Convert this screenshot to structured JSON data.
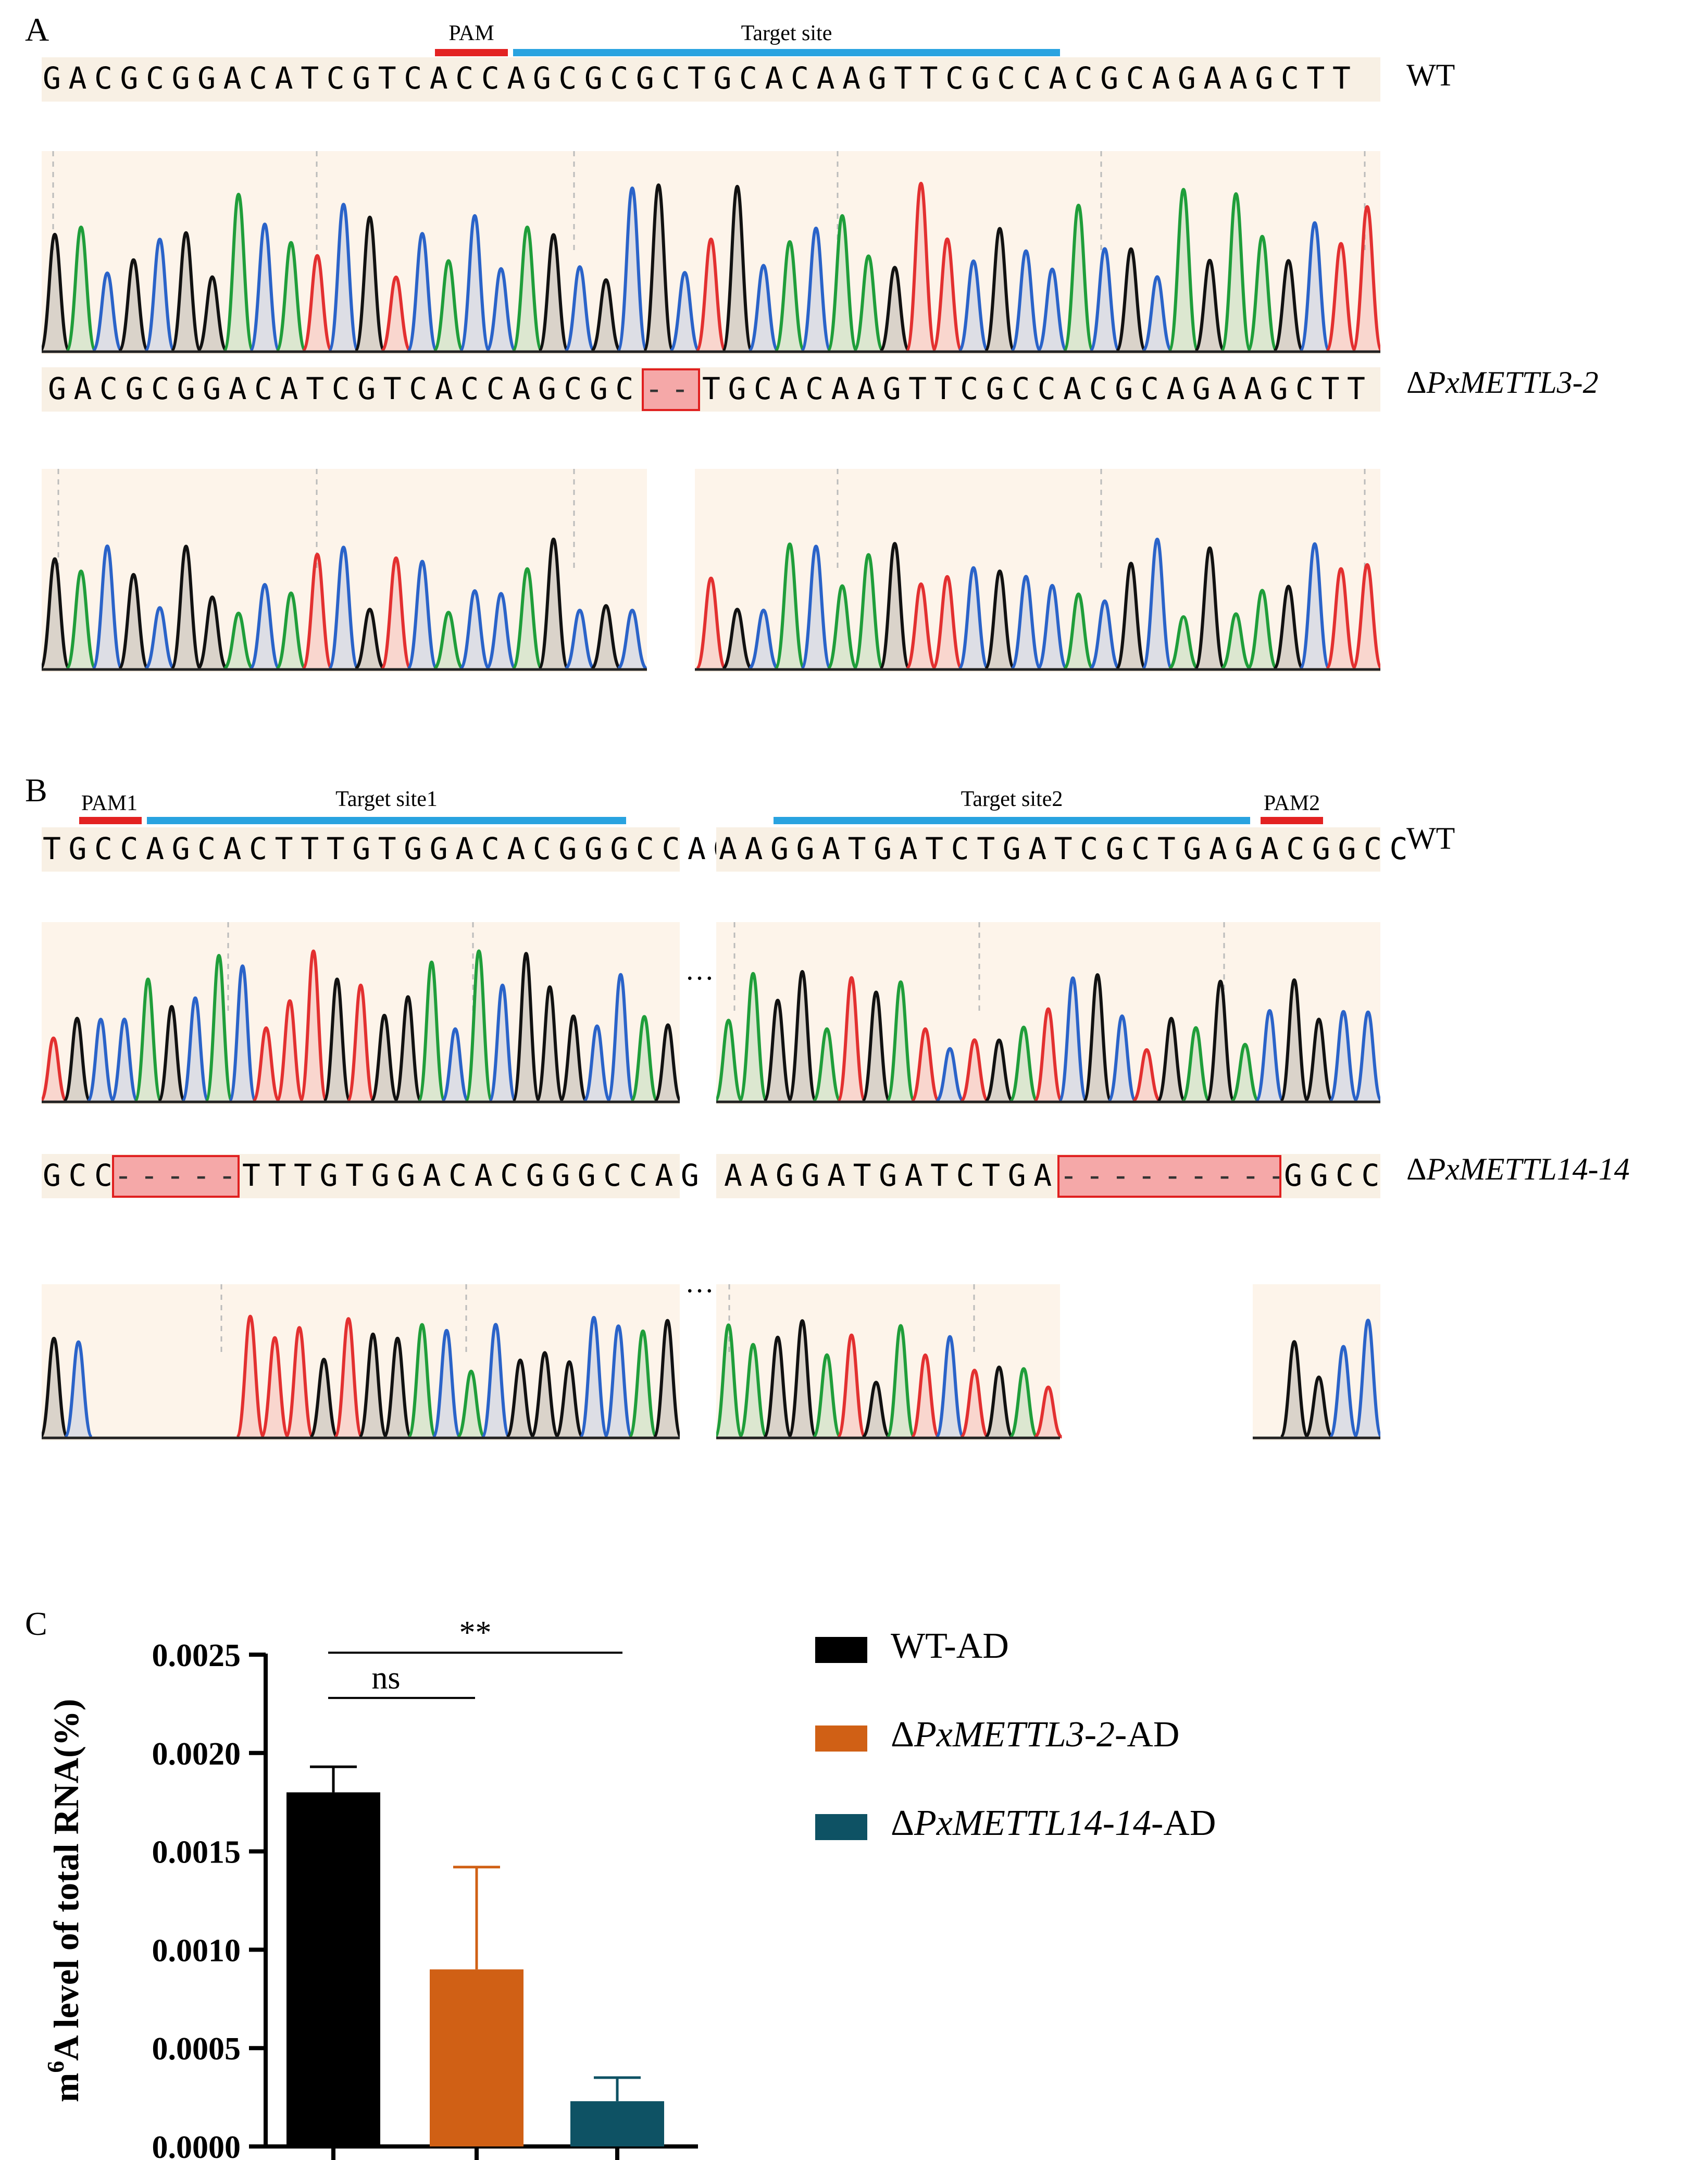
{
  "panel_a": {
    "label": "A",
    "pam_label": "PAM",
    "target_label": "Target site",
    "wt_seq": "GACGCGGACATCGTCACCAGCGCGCTGCACAAGTTCGCCACGCAGAAGCTT",
    "wt_label": "WT",
    "mut_seq_left": "GACGCGGACATCGTCACCAGCGC",
    "mut_deletion": "--",
    "mut_seq_right": "TGCACAAGTTCGCCACGCAGAAGCTT",
    "mut_label_prefix": "Δ",
    "mut_label_name": "PxMETTL3-2",
    "colors": {
      "pam": "#e32222",
      "target": "#29a3e0"
    }
  },
  "panel_b": {
    "label": "B",
    "pam1_label": "PAM1",
    "target1_label": "Target site1",
    "target2_label": "Target site2",
    "pam2_label": "PAM2",
    "wt_seq_left": "TGCCAGCACTTTGTGGACACGGGCCAG",
    "wt_seq_right": "AAGGATGATCTGATCGCTGAGACGGCC",
    "wt_label": "WT",
    "mut_seq_left_a": "GCC",
    "mut_deletion_1": "-----",
    "mut_seq_left_b": "TTTGTGGACACGGGCCAG",
    "mut_seq_right_a": "AAGGATGATCTGAT",
    "mut_deletion_2": "---------",
    "mut_seq_right_b": "GGCC",
    "mut_label_prefix": "Δ",
    "mut_label_name": "PxMETTL14-14",
    "ellipsis": "…"
  },
  "panel_c": {
    "label": "C",
    "significance": [
      {
        "text": "ns",
        "from": 0,
        "to": 1
      },
      {
        "text": "**",
        "from": 0,
        "to": 2
      }
    ],
    "legend": [
      {
        "prefix": "",
        "italic": "",
        "suffix": "WT-AD",
        "color": "#000000"
      },
      {
        "prefix": "Δ",
        "italic": "PxMETTL3-2",
        "suffix": "-AD",
        "color": "#d06015"
      },
      {
        "prefix": "Δ",
        "italic": "PxMETTL14-14",
        "suffix": "-AD",
        "color": "#0e5264"
      }
    ]
  },
  "chart_data": {
    "type": "bar",
    "categories": [
      "WT-AD",
      "ΔPxMETTL3-2-AD",
      "ΔPxMETTL14-14-AD"
    ],
    "values": [
      0.0018,
      0.0009,
      0.00023
    ],
    "errors": [
      0.00013,
      0.00052,
      0.00012
    ],
    "colors": [
      "#000000",
      "#d06015",
      "#0e5264"
    ],
    "ylabel": "m6A level of total RNA(%)",
    "ylabel_main": "m",
    "ylabel_sup": "6",
    "ylabel_rest": "A level of total RNA(%)",
    "ylim": [
      0,
      0.0025
    ],
    "yticks": [
      "0.0000",
      "0.0005",
      "0.0010",
      "0.0015",
      "0.0020",
      "0.0025"
    ],
    "ytick_values": [
      0,
      0.0005,
      0.001,
      0.0015,
      0.002,
      0.0025
    ]
  }
}
